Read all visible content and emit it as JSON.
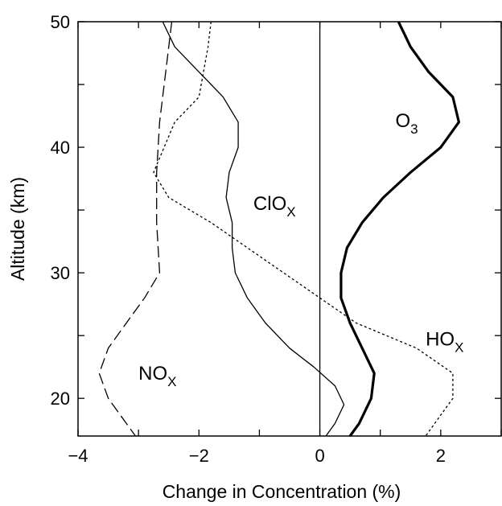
{
  "chart_data": {
    "type": "line",
    "xlabel": "Change in Concentration (%)",
    "ylabel": "Altitude (km)",
    "xlim": [
      -4,
      3
    ],
    "ylim": [
      17,
      50
    ],
    "xticks": [
      -4,
      -2,
      0,
      2
    ],
    "xtick_labels": [
      "−4",
      "−2",
      "0",
      "2"
    ],
    "yticks": [
      20,
      30,
      40,
      50
    ],
    "ytick_labels": [
      "20",
      "30",
      "40",
      "50"
    ],
    "grid": false,
    "series": [
      {
        "name": "O3",
        "label": "O",
        "label_sub": "3",
        "style": "thick",
        "points": [
          [
            1.3,
            50
          ],
          [
            1.5,
            48
          ],
          [
            1.8,
            46
          ],
          [
            2.2,
            44
          ],
          [
            2.3,
            42
          ],
          [
            2.0,
            40
          ],
          [
            1.5,
            38
          ],
          [
            1.05,
            36
          ],
          [
            0.7,
            34
          ],
          [
            0.45,
            32
          ],
          [
            0.35,
            30
          ],
          [
            0.35,
            28
          ],
          [
            0.5,
            26
          ],
          [
            0.7,
            24
          ],
          [
            0.9,
            22
          ],
          [
            0.85,
            20
          ],
          [
            0.65,
            18
          ],
          [
            0.5,
            17
          ]
        ]
      },
      {
        "name": "ClOX",
        "label": "ClO",
        "label_sub": "X",
        "style": "solid",
        "points": [
          [
            -2.6,
            50
          ],
          [
            -2.4,
            48
          ],
          [
            -2.0,
            46
          ],
          [
            -1.6,
            44
          ],
          [
            -1.35,
            42
          ],
          [
            -1.35,
            40
          ],
          [
            -1.5,
            38
          ],
          [
            -1.55,
            36
          ],
          [
            -1.45,
            34
          ],
          [
            -1.45,
            32
          ],
          [
            -1.4,
            30
          ],
          [
            -1.2,
            28
          ],
          [
            -0.9,
            26
          ],
          [
            -0.5,
            24
          ],
          [
            -0.1,
            22.5
          ],
          [
            0.25,
            21
          ],
          [
            0.4,
            19.5
          ],
          [
            0.25,
            18
          ],
          [
            0.1,
            17
          ]
        ]
      },
      {
        "name": "HOX",
        "label": "HO",
        "label_sub": "X",
        "style": "dotted",
        "points": [
          [
            -1.8,
            50
          ],
          [
            -1.85,
            48
          ],
          [
            -2.0,
            44
          ],
          [
            -2.4,
            42
          ],
          [
            -2.75,
            38
          ],
          [
            -2.5,
            36
          ],
          [
            -1.8,
            34
          ],
          [
            -1.2,
            32
          ],
          [
            -0.6,
            30
          ],
          [
            0,
            28
          ],
          [
            0.6,
            26
          ],
          [
            1.6,
            24
          ],
          [
            2.2,
            22
          ],
          [
            2.2,
            20
          ],
          [
            1.9,
            18
          ],
          [
            1.75,
            17
          ]
        ]
      },
      {
        "name": "NOX",
        "label": "NO",
        "label_sub": "X",
        "style": "dashed",
        "points": [
          [
            -2.45,
            50
          ],
          [
            -2.55,
            46
          ],
          [
            -2.65,
            42
          ],
          [
            -2.7,
            38
          ],
          [
            -2.7,
            34
          ],
          [
            -2.65,
            30
          ],
          [
            -2.9,
            28
          ],
          [
            -3.2,
            26
          ],
          [
            -3.5,
            24
          ],
          [
            -3.65,
            22
          ],
          [
            -3.5,
            20
          ],
          [
            -3.2,
            18
          ],
          [
            -3.05,
            17
          ]
        ]
      }
    ],
    "series_label_positions": [
      {
        "name": "O3",
        "x": 1.25,
        "y": 41.6
      },
      {
        "name": "ClOX",
        "x": -1.1,
        "y": 35.0
      },
      {
        "name": "HOX",
        "x": 1.75,
        "y": 24.2
      },
      {
        "name": "NOX",
        "x": -3.0,
        "y": 21.5
      }
    ]
  }
}
